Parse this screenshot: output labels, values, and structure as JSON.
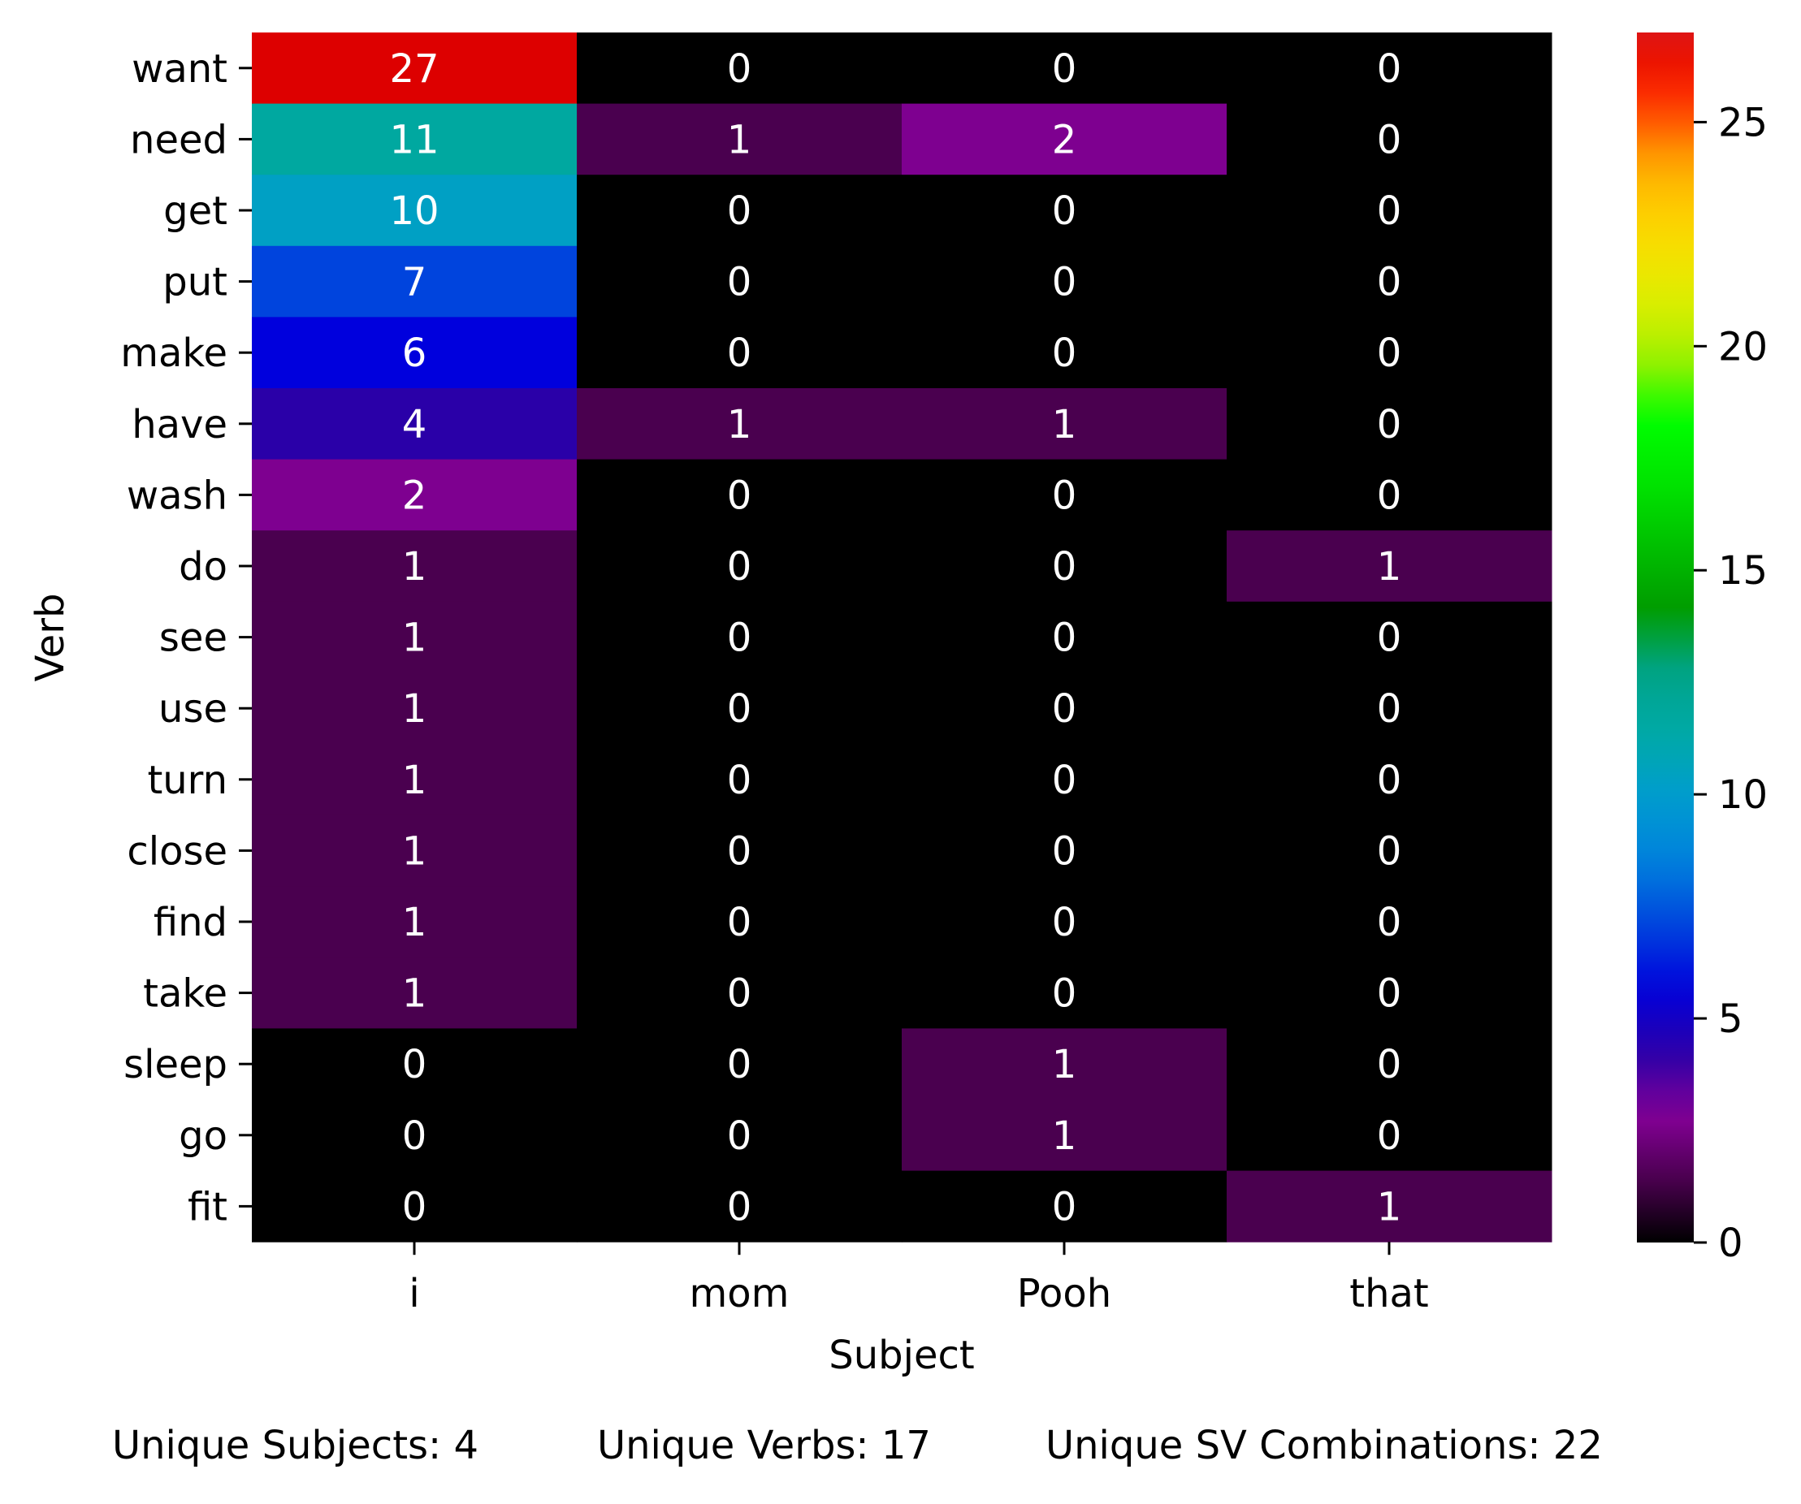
{
  "chart_data": {
    "type": "heatmap",
    "xlabel": "Subject",
    "ylabel": "Verb",
    "x_categories": [
      "i",
      "mom",
      "Pooh",
      "that"
    ],
    "y_categories": [
      "want",
      "need",
      "get",
      "put",
      "make",
      "have",
      "wash",
      "do",
      "see",
      "use",
      "turn",
      "close",
      "find",
      "take",
      "sleep",
      "go",
      "fit"
    ],
    "values": [
      [
        27,
        0,
        0,
        0
      ],
      [
        11,
        1,
        2,
        0
      ],
      [
        10,
        0,
        0,
        0
      ],
      [
        7,
        0,
        0,
        0
      ],
      [
        6,
        0,
        0,
        0
      ],
      [
        4,
        1,
        1,
        0
      ],
      [
        2,
        0,
        0,
        0
      ],
      [
        1,
        0,
        0,
        1
      ],
      [
        1,
        0,
        0,
        0
      ],
      [
        1,
        0,
        0,
        0
      ],
      [
        1,
        0,
        0,
        0
      ],
      [
        1,
        0,
        0,
        0
      ],
      [
        1,
        0,
        0,
        0
      ],
      [
        1,
        0,
        0,
        0
      ],
      [
        0,
        0,
        1,
        0
      ],
      [
        0,
        0,
        1,
        0
      ],
      [
        0,
        0,
        0,
        1
      ]
    ],
    "annotated": true,
    "colormap": "nipy_spectral",
    "color_range": [
      0,
      27
    ],
    "colorbar_ticks": [
      "0",
      "5",
      "10",
      "15",
      "20",
      "25"
    ],
    "colorbar_tick_values": [
      0,
      5,
      10,
      15,
      20,
      25
    ],
    "colors": {
      "0": "#000000",
      "1": "#4a004f",
      "2": "#7e0090",
      "4": "#2a00a8",
      "6": "#0000dd",
      "7": "#0044dd",
      "10": "#00a0c4",
      "11": "#00a8a0",
      "27": "#dd0000"
    }
  },
  "footer": {
    "unique_subjects": "Unique Subjects: 4",
    "unique_verbs": "Unique Verbs: 17",
    "unique_sv": "Unique SV Combinations: 22"
  }
}
